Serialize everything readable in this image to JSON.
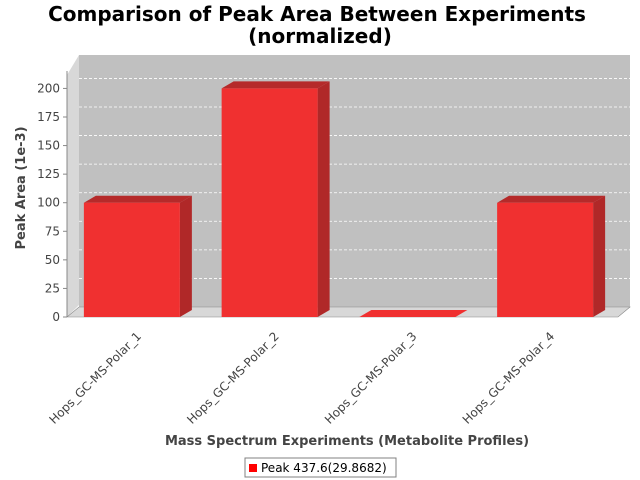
{
  "chart_data": {
    "type": "bar",
    "title_lines": [
      "Comparison of Peak Area Between Experiments",
      "(normalized)"
    ],
    "xlabel": "Mass Spectrum Experiments (Metabolite Profiles)",
    "ylabel": "Peak Area (1e-3)",
    "categories": [
      "Hops_GC-MS-Polar_1",
      "Hops_GC-MS-Polar_2",
      "Hops_GC-MS-Polar_3",
      "Hops_GC-MS-Polar_4"
    ],
    "series": [
      {
        "name": "Peak 437.6(29.8682)",
        "values": [
          100,
          200,
          0,
          100
        ]
      }
    ],
    "ylim": [
      0,
      210
    ],
    "yticks": [
      0,
      25,
      50,
      75,
      100,
      125,
      150,
      175,
      200
    ],
    "grid": true,
    "legend": "bottom-center",
    "colors": {
      "bar_front": "#f03030",
      "bar_top": "#b52a2a",
      "bar_side": "#b02828",
      "plot_background": "#c0c0c0",
      "plot_wall": "#d8d8d8",
      "legend_swatch": "#ff0000"
    }
  }
}
